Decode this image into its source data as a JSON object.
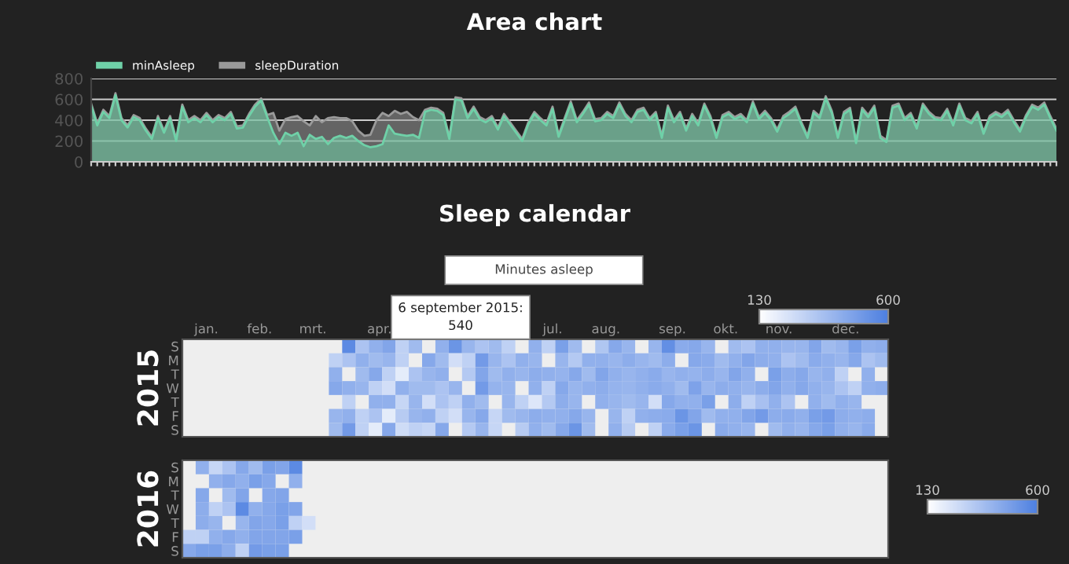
{
  "chart_data": [
    {
      "type": "area",
      "title": "Area chart",
      "ylim": [
        0,
        800
      ],
      "yticks": [
        0,
        200,
        400,
        600,
        800
      ],
      "grid": "y",
      "legend": "top left",
      "categories": [
        null,
        null,
        null,
        null,
        null,
        null,
        null,
        null,
        null,
        null,
        null,
        null,
        null,
        null,
        null,
        null,
        null,
        null,
        null,
        null,
        null,
        null,
        null,
        null,
        null,
        null,
        null,
        null,
        null,
        null,
        null,
        null,
        null,
        null,
        null,
        null,
        null,
        null,
        null,
        null,
        null,
        null,
        null,
        null,
        null,
        null,
        null,
        null,
        null,
        null,
        null,
        null,
        null,
        null,
        null,
        null,
        null,
        null,
        null,
        null,
        null,
        null,
        null,
        null,
        null,
        null,
        null,
        null,
        null,
        null,
        null,
        null,
        null,
        null,
        null,
        null,
        null,
        null,
        null,
        null,
        null,
        null,
        null,
        null,
        null,
        null,
        null,
        null,
        null,
        null,
        null,
        null,
        null,
        null,
        null,
        null,
        null,
        null,
        null,
        null,
        null,
        null,
        null,
        null,
        null,
        null,
        null,
        null,
        null,
        null,
        null,
        null,
        null,
        null,
        null,
        null,
        null,
        null,
        null,
        null,
        null,
        null,
        null,
        null,
        null,
        null,
        null,
        null,
        null,
        null,
        null,
        null,
        null,
        null,
        null,
        null,
        null,
        null,
        null,
        null,
        null,
        null,
        null,
        null,
        null,
        null,
        null,
        null,
        null,
        null,
        null,
        null,
        null,
        null,
        null,
        null,
        null,
        null,
        null,
        null
      ],
      "series": [
        {
          "name": "minAsleep",
          "color": "#6fd1a8",
          "values": [
            540,
            350,
            480,
            420,
            640,
            400,
            330,
            430,
            400,
            300,
            220,
            420,
            280,
            420,
            200,
            530,
            380,
            420,
            380,
            450,
            380,
            430,
            400,
            460,
            320,
            330,
            440,
            530,
            590,
            430,
            280,
            170,
            280,
            250,
            280,
            150,
            260,
            220,
            240,
            170,
            230,
            250,
            230,
            250,
            200,
            160,
            140,
            150,
            170,
            350,
            270,
            260,
            250,
            260,
            230,
            480,
            500,
            490,
            450,
            220,
            600,
            590,
            420,
            510,
            410,
            380,
            420,
            310,
            440,
            360,
            280,
            200,
            360,
            460,
            400,
            350,
            510,
            240,
            400,
            560,
            380,
            460,
            550,
            390,
            400,
            460,
            420,
            550,
            440,
            380,
            480,
            500,
            400,
            460,
            230,
            520,
            380,
            460,
            300,
            440,
            350,
            540,
            420,
            230,
            430,
            460,
            410,
            440,
            380,
            560,
            410,
            470,
            400,
            290,
            420,
            460,
            510,
            360,
            230,
            470,
            420,
            610,
            470,
            230,
            460,
            500,
            180,
            500,
            430,
            520,
            230,
            190,
            520,
            540,
            400,
            450,
            320,
            540,
            460,
            410,
            400,
            490,
            350,
            540,
            400,
            370,
            460,
            270,
            420,
            460,
            430,
            480,
            380,
            290,
            430,
            530,
            500,
            550,
            420,
            300
          ]
        },
        {
          "name": "sleepDuration",
          "color": "#9a9a9a",
          "values": [
            560,
            370,
            500,
            440,
            660,
            420,
            350,
            450,
            420,
            320,
            240,
            440,
            300,
            440,
            220,
            550,
            400,
            440,
            400,
            470,
            400,
            450,
            420,
            480,
            340,
            350,
            460,
            550,
            610,
            450,
            470,
            300,
            410,
            430,
            440,
            390,
            350,
            440,
            380,
            420,
            430,
            420,
            420,
            390,
            300,
            250,
            260,
            400,
            470,
            440,
            490,
            460,
            480,
            430,
            400,
            500,
            520,
            510,
            470,
            240,
            620,
            610,
            440,
            530,
            430,
            400,
            440,
            330,
            460,
            380,
            300,
            220,
            380,
            480,
            420,
            370,
            530,
            260,
            420,
            580,
            400,
            480,
            570,
            410,
            420,
            480,
            440,
            570,
            460,
            400,
            500,
            520,
            420,
            480,
            250,
            540,
            400,
            480,
            320,
            460,
            370,
            560,
            440,
            250,
            450,
            480,
            430,
            460,
            400,
            580,
            430,
            490,
            420,
            310,
            440,
            480,
            530,
            380,
            250,
            490,
            440,
            630,
            490,
            250,
            480,
            520,
            200,
            520,
            450,
            540,
            250,
            210,
            540,
            560,
            420,
            470,
            340,
            560,
            480,
            430,
            420,
            510,
            370,
            560,
            420,
            390,
            480,
            290,
            440,
            480,
            450,
            500,
            400,
            310,
            450,
            550,
            520,
            570,
            440,
            320
          ]
        }
      ]
    },
    {
      "type": "heatmap",
      "title": "Sleep calendar",
      "ylabel": "2015",
      "clim": [
        130,
        600
      ],
      "cticks": [
        130,
        600
      ],
      "annotations": [
        "Minutes asleep",
        "6 september 2015:\n540"
      ],
      "categories": [
        null,
        "jan.",
        null,
        null,
        null,
        "feb.",
        null,
        null,
        null,
        "mrt.",
        null,
        null,
        null,
        null,
        "apr.",
        null,
        null,
        null,
        null,
        null,
        null,
        null,
        null,
        null,
        null,
        null,
        null,
        "jul.",
        null,
        null,
        null,
        "aug.",
        null,
        null,
        null,
        null,
        "sep.",
        null,
        null,
        null,
        "okt.",
        null,
        null,
        null,
        "nov.",
        null,
        null,
        null,
        null,
        "dec.",
        null,
        null,
        null
      ],
      "y_categories": [
        "S",
        "M",
        "T",
        "W",
        "T",
        "F",
        "S"
      ],
      "cells": [
        [
          null,
          null,
          null,
          null,
          null,
          null,
          null,
          null,
          null,
          null,
          null,
          null,
          560,
          350,
          420,
          460,
          300,
          380,
          null,
          420,
          520,
          400,
          350,
          380,
          300,
          null,
          420,
          300,
          480,
          380,
          null,
          340,
          450,
          400,
          null,
          400,
          540,
          440,
          450,
          400,
          null,
          380,
          350,
          420,
          420,
          400,
          400,
          460,
          380,
          400,
          480,
          420,
          430
        ],
        [
          null,
          null,
          null,
          null,
          null,
          null,
          null,
          null,
          null,
          null,
          null,
          300,
          350,
          420,
          380,
          400,
          300,
          null,
          450,
          380,
          250,
          300,
          500,
          400,
          350,
          420,
          400,
          null,
          400,
          330,
          420,
          420,
          400,
          430,
          400,
          380,
          430,
          null,
          450,
          440,
          380,
          420,
          460,
          430,
          420,
          350,
          380,
          440,
          420,
          400,
          450,
          350,
          380
        ],
        [
          null,
          null,
          null,
          null,
          null,
          null,
          null,
          null,
          null,
          null,
          null,
          420,
          null,
          380,
          450,
          300,
          200,
          350,
          400,
          420,
          null,
          330,
          460,
          380,
          420,
          400,
          430,
          420,
          410,
          450,
          380,
          460,
          420,
          400,
          420,
          440,
          400,
          420,
          410,
          430,
          400,
          460,
          420,
          null,
          480,
          430,
          450,
          400,
          420,
          300,
          null,
          420,
          null
        ],
        [
          null,
          null,
          null,
          null,
          null,
          null,
          null,
          null,
          null,
          null,
          null,
          450,
          420,
          400,
          300,
          250,
          420,
          380,
          380,
          350,
          400,
          null,
          500,
          410,
          400,
          null,
          420,
          300,
          450,
          400,
          420,
          430,
          410,
          400,
          420,
          440,
          420,
          380,
          470,
          400,
          430,
          420,
          400,
          430,
          460,
          420,
          450,
          420,
          400,
          350,
          300,
          420,
          430
        ],
        [
          null,
          null,
          null,
          null,
          null,
          null,
          null,
          null,
          null,
          null,
          null,
          null,
          300,
          null,
          420,
          420,
          280,
          400,
          250,
          350,
          300,
          420,
          380,
          null,
          400,
          300,
          220,
          330,
          430,
          400,
          null,
          420,
          400,
          380,
          400,
          250,
          450,
          420,
          420,
          480,
          null,
          430,
          300,
          360,
          420,
          350,
          null,
          420,
          380,
          420,
          400,
          null,
          null
        ],
        [
          null,
          null,
          null,
          null,
          null,
          null,
          null,
          null,
          null,
          null,
          null,
          400,
          420,
          300,
          350,
          200,
          320,
          400,
          420,
          300,
          250,
          400,
          450,
          280,
          380,
          400,
          430,
          420,
          420,
          450,
          400,
          null,
          400,
          300,
          420,
          430,
          440,
          520,
          460,
          380,
          420,
          420,
          460,
          500,
          430,
          440,
          420,
          480,
          500,
          430,
          420,
          430,
          null
        ],
        [
          null,
          null,
          null,
          null,
          null,
          null,
          null,
          null,
          null,
          null,
          null,
          380,
          500,
          300,
          200,
          450,
          260,
          300,
          280,
          450,
          null,
          330,
          400,
          280,
          null,
          320,
          420,
          380,
          450,
          520,
          380,
          null,
          420,
          320,
          null,
          300,
          440,
          480,
          520,
          null,
          440,
          420,
          400,
          null,
          380,
          420,
          400,
          450,
          480,
          420,
          400,
          440,
          null
        ]
      ]
    },
    {
      "type": "heatmap",
      "ylabel": "2016",
      "clim": [
        130,
        600
      ],
      "cticks": [
        130,
        600
      ],
      "categories": [
        null,
        null,
        null,
        null,
        null,
        null,
        null,
        null,
        null,
        null,
        null,
        null,
        null,
        null,
        null,
        null,
        null,
        null,
        null,
        null,
        null,
        null,
        null,
        null,
        null,
        null,
        null,
        null,
        null,
        null,
        null,
        null,
        null,
        null,
        null,
        null,
        null,
        null,
        null,
        null,
        null,
        null,
        null,
        null,
        null,
        null,
        null,
        null,
        null,
        null,
        null,
        null,
        null
      ],
      "y_categories": [
        "S",
        "M",
        "T",
        "W",
        "T",
        "F",
        "S"
      ],
      "cells": [
        [
          null,
          420,
          280,
          350,
          450,
          380,
          480,
          460,
          560,
          null,
          null,
          null,
          null,
          null,
          null,
          null,
          null,
          null,
          null,
          null,
          null,
          null,
          null,
          null,
          null,
          null,
          null,
          null,
          null,
          null,
          null,
          null,
          null,
          null,
          null,
          null,
          null,
          null,
          null,
          null,
          null,
          null,
          null,
          null,
          null,
          null,
          null,
          null,
          null,
          null,
          null,
          null,
          null
        ],
        [
          null,
          null,
          420,
          450,
          420,
          480,
          450,
          null,
          420,
          null,
          null,
          null,
          null,
          null,
          null,
          null,
          null,
          null,
          null,
          null,
          null,
          null,
          null,
          null,
          null,
          null,
          null,
          null,
          null,
          null,
          null,
          null,
          null,
          null,
          null,
          null,
          null,
          null,
          null,
          null,
          null,
          null,
          null,
          null,
          null,
          null,
          null,
          null,
          null,
          null,
          null,
          null,
          null
        ],
        [
          null,
          450,
          null,
          380,
          460,
          null,
          450,
          460,
          null,
          null,
          null,
          null,
          null,
          null,
          null,
          null,
          null,
          null,
          null,
          null,
          null,
          null,
          null,
          null,
          null,
          null,
          null,
          null,
          null,
          null,
          null,
          null,
          null,
          null,
          null,
          null,
          null,
          null,
          null,
          null,
          null,
          null,
          null,
          null,
          null,
          null,
          null,
          null,
          null,
          null,
          null,
          null,
          null
        ],
        [
          null,
          430,
          300,
          350,
          560,
          420,
          450,
          480,
          460,
          null,
          null,
          null,
          null,
          null,
          null,
          null,
          null,
          null,
          null,
          null,
          null,
          null,
          null,
          null,
          null,
          null,
          null,
          null,
          null,
          null,
          null,
          null,
          null,
          null,
          null,
          null,
          null,
          null,
          null,
          null,
          null,
          null,
          null,
          null,
          null,
          null,
          null,
          null,
          null,
          null,
          null,
          null,
          null
        ],
        [
          null,
          430,
          400,
          null,
          400,
          460,
          450,
          480,
          300,
          250,
          null,
          null,
          null,
          null,
          null,
          null,
          null,
          null,
          null,
          null,
          null,
          null,
          null,
          null,
          null,
          null,
          null,
          null,
          null,
          null,
          null,
          null,
          null,
          null,
          null,
          null,
          null,
          null,
          null,
          null,
          null,
          null,
          null,
          null,
          null,
          null,
          null,
          null,
          null,
          null,
          null,
          null,
          null
        ],
        [
          300,
          300,
          420,
          450,
          420,
          460,
          460,
          460,
          480,
          null,
          null,
          null,
          null,
          null,
          null,
          null,
          null,
          null,
          null,
          null,
          null,
          null,
          null,
          null,
          null,
          null,
          null,
          null,
          null,
          null,
          null,
          null,
          null,
          null,
          null,
          null,
          null,
          null,
          null,
          null,
          null,
          null,
          null,
          null,
          null,
          null,
          null,
          null,
          null,
          null,
          null,
          null,
          null
        ],
        [
          450,
          480,
          480,
          430,
          300,
          500,
          480,
          480,
          null,
          null,
          null,
          null,
          null,
          null,
          null,
          null,
          null,
          null,
          null,
          null,
          null,
          null,
          null,
          null,
          null,
          null,
          null,
          null,
          null,
          null,
          null,
          null,
          null,
          null,
          null,
          null,
          null,
          null,
          null,
          null,
          null,
          null,
          null,
          null,
          null,
          null,
          null,
          null,
          null,
          null,
          null,
          null,
          null
        ]
      ]
    }
  ]
}
